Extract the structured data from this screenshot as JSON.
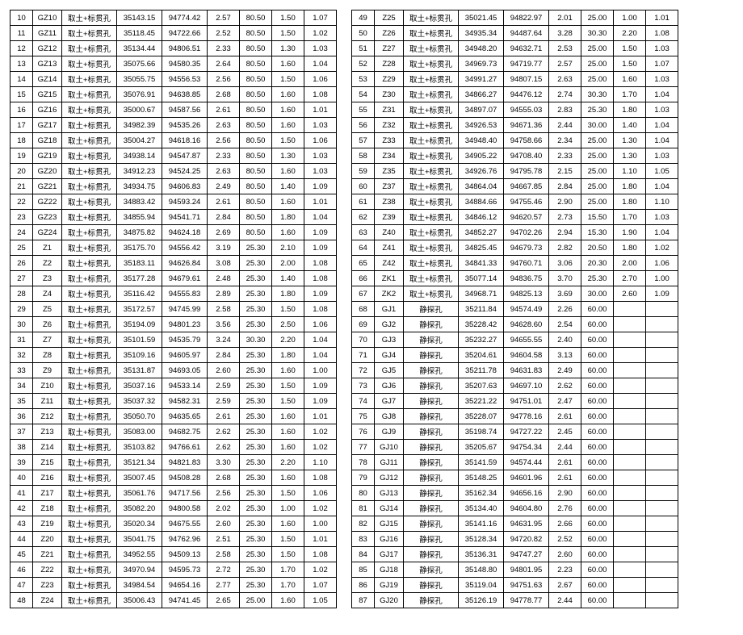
{
  "leftTable": {
    "rows": [
      [
        "10",
        "GZ10",
        "取土+标贯孔",
        "35143.15",
        "94774.42",
        "2.57",
        "80.50",
        "1.50",
        "1.07"
      ],
      [
        "11",
        "GZ11",
        "取土+标贯孔",
        "35118.45",
        "94722.66",
        "2.52",
        "80.50",
        "1.50",
        "1.02"
      ],
      [
        "12",
        "GZ12",
        "取土+标贯孔",
        "35134.44",
        "94806.51",
        "2.33",
        "80.50",
        "1.30",
        "1.03"
      ],
      [
        "13",
        "GZ13",
        "取土+标贯孔",
        "35075.66",
        "94580.35",
        "2.64",
        "80.50",
        "1.60",
        "1.04"
      ],
      [
        "14",
        "GZ14",
        "取土+标贯孔",
        "35055.75",
        "94556.53",
        "2.56",
        "80.50",
        "1.50",
        "1.06"
      ],
      [
        "15",
        "GZ15",
        "取土+标贯孔",
        "35076.91",
        "94638.85",
        "2.68",
        "80.50",
        "1.60",
        "1.08"
      ],
      [
        "16",
        "GZ16",
        "取土+标贯孔",
        "35000.67",
        "94587.56",
        "2.61",
        "80.50",
        "1.60",
        "1.01"
      ],
      [
        "17",
        "GZ17",
        "取土+标贯孔",
        "34982.39",
        "94535.26",
        "2.63",
        "80.50",
        "1.60",
        "1.03"
      ],
      [
        "18",
        "GZ18",
        "取土+标贯孔",
        "35004.27",
        "94618.16",
        "2.56",
        "80.50",
        "1.50",
        "1.06"
      ],
      [
        "19",
        "GZ19",
        "取土+标贯孔",
        "34938.14",
        "94547.87",
        "2.33",
        "80.50",
        "1.30",
        "1.03"
      ],
      [
        "20",
        "GZ20",
        "取土+标贯孔",
        "34912.23",
        "94524.25",
        "2.63",
        "80.50",
        "1.60",
        "1.03"
      ],
      [
        "21",
        "GZ21",
        "取土+标贯孔",
        "34934.75",
        "94606.83",
        "2.49",
        "80.50",
        "1.40",
        "1.09"
      ],
      [
        "22",
        "GZ22",
        "取土+标贯孔",
        "34883.42",
        "94593.24",
        "2.61",
        "80.50",
        "1.60",
        "1.01"
      ],
      [
        "23",
        "GZ23",
        "取土+标贯孔",
        "34855.94",
        "94541.71",
        "2.84",
        "80.50",
        "1.80",
        "1.04"
      ],
      [
        "24",
        "GZ24",
        "取土+标贯孔",
        "34875.82",
        "94624.18",
        "2.69",
        "80.50",
        "1.60",
        "1.09"
      ],
      [
        "25",
        "Z1",
        "取土+标贯孔",
        "35175.70",
        "94556.42",
        "3.19",
        "25.30",
        "2.10",
        "1.09"
      ],
      [
        "26",
        "Z2",
        "取土+标贯孔",
        "35183.11",
        "94626.84",
        "3.08",
        "25.30",
        "2.00",
        "1.08"
      ],
      [
        "27",
        "Z3",
        "取土+标贯孔",
        "35177.28",
        "94679.61",
        "2.48",
        "25.30",
        "1.40",
        "1.08"
      ],
      [
        "28",
        "Z4",
        "取土+标贯孔",
        "35116.42",
        "94555.83",
        "2.89",
        "25.30",
        "1.80",
        "1.09"
      ],
      [
        "29",
        "Z5",
        "取土+标贯孔",
        "35172.57",
        "94745.99",
        "2.58",
        "25.30",
        "1.50",
        "1.08"
      ],
      [
        "30",
        "Z6",
        "取土+标贯孔",
        "35194.09",
        "94801.23",
        "3.56",
        "25.30",
        "2.50",
        "1.06"
      ],
      [
        "31",
        "Z7",
        "取土+标贯孔",
        "35101.59",
        "94535.79",
        "3.24",
        "30.30",
        "2.20",
        "1.04"
      ],
      [
        "32",
        "Z8",
        "取土+标贯孔",
        "35109.16",
        "94605.97",
        "2.84",
        "25.30",
        "1.80",
        "1.04"
      ],
      [
        "33",
        "Z9",
        "取土+标贯孔",
        "35131.87",
        "94693.05",
        "2.60",
        "25.30",
        "1.60",
        "1.00"
      ],
      [
        "34",
        "Z10",
        "取土+标贯孔",
        "35037.16",
        "94533.14",
        "2.59",
        "25.30",
        "1.50",
        "1.09"
      ],
      [
        "35",
        "Z11",
        "取土+标贯孔",
        "35037.32",
        "94582.31",
        "2.59",
        "25.30",
        "1.50",
        "1.09"
      ],
      [
        "36",
        "Z12",
        "取土+标贯孔",
        "35050.70",
        "94635.65",
        "2.61",
        "25.30",
        "1.60",
        "1.01"
      ],
      [
        "37",
        "Z13",
        "取土+标贯孔",
        "35083.00",
        "94682.75",
        "2.62",
        "25.30",
        "1.60",
        "1.02"
      ],
      [
        "38",
        "Z14",
        "取土+标贯孔",
        "35103.82",
        "94766.61",
        "2.62",
        "25.30",
        "1.60",
        "1.02"
      ],
      [
        "39",
        "Z15",
        "取土+标贯孔",
        "35121.34",
        "94821.83",
        "3.30",
        "25.30",
        "2.20",
        "1.10"
      ],
      [
        "40",
        "Z16",
        "取土+标贯孔",
        "35007.45",
        "94508.28",
        "2.68",
        "25.30",
        "1.60",
        "1.08"
      ],
      [
        "41",
        "Z17",
        "取土+标贯孔",
        "35061.76",
        "94717.56",
        "2.56",
        "25.30",
        "1.50",
        "1.06"
      ],
      [
        "42",
        "Z18",
        "取土+标贯孔",
        "35082.20",
        "94800.58",
        "2.02",
        "25.30",
        "1.00",
        "1.02"
      ],
      [
        "43",
        "Z19",
        "取土+标贯孔",
        "35020.34",
        "94675.55",
        "2.60",
        "25.30",
        "1.60",
        "1.00"
      ],
      [
        "44",
        "Z20",
        "取土+标贯孔",
        "35041.75",
        "94762.96",
        "2.51",
        "25.30",
        "1.50",
        "1.01"
      ],
      [
        "45",
        "Z21",
        "取土+标贯孔",
        "34952.55",
        "94509.13",
        "2.58",
        "25.30",
        "1.50",
        "1.08"
      ],
      [
        "46",
        "Z22",
        "取土+标贯孔",
        "34970.94",
        "94595.73",
        "2.72",
        "25.30",
        "1.70",
        "1.02"
      ],
      [
        "47",
        "Z23",
        "取土+标贯孔",
        "34984.54",
        "94654.16",
        "2.77",
        "25.30",
        "1.70",
        "1.07"
      ],
      [
        "48",
        "Z24",
        "取土+标贯孔",
        "35006.43",
        "94741.45",
        "2.65",
        "25.00",
        "1.60",
        "1.05"
      ]
    ]
  },
  "rightTable": {
    "rows": [
      [
        "49",
        "Z25",
        "取土+标贯孔",
        "35021.45",
        "94822.97",
        "2.01",
        "25.00",
        "1.00",
        "1.01"
      ],
      [
        "50",
        "Z26",
        "取土+标贯孔",
        "34935.34",
        "94487.64",
        "3.28",
        "30.30",
        "2.20",
        "1.08"
      ],
      [
        "51",
        "Z27",
        "取土+标贯孔",
        "34948.20",
        "94632.71",
        "2.53",
        "25.00",
        "1.50",
        "1.03"
      ],
      [
        "52",
        "Z28",
        "取土+标贯孔",
        "34969.73",
        "94719.77",
        "2.57",
        "25.00",
        "1.50",
        "1.07"
      ],
      [
        "53",
        "Z29",
        "取土+标贯孔",
        "34991.27",
        "94807.15",
        "2.63",
        "25.00",
        "1.60",
        "1.03"
      ],
      [
        "54",
        "Z30",
        "取土+标贯孔",
        "34866.27",
        "94476.12",
        "2.74",
        "30.30",
        "1.70",
        "1.04"
      ],
      [
        "55",
        "Z31",
        "取土+标贯孔",
        "34897.07",
        "94555.03",
        "2.83",
        "25.30",
        "1.80",
        "1.03"
      ],
      [
        "56",
        "Z32",
        "取土+标贯孔",
        "34926.53",
        "94671.36",
        "2.44",
        "30.00",
        "1.40",
        "1.04"
      ],
      [
        "57",
        "Z33",
        "取土+标贯孔",
        "34948.40",
        "94758.66",
        "2.34",
        "25.00",
        "1.30",
        "1.04"
      ],
      [
        "58",
        "Z34",
        "取土+标贯孔",
        "34905.22",
        "94708.40",
        "2.33",
        "25.00",
        "1.30",
        "1.03"
      ],
      [
        "59",
        "Z35",
        "取土+标贯孔",
        "34926.76",
        "94795.78",
        "2.15",
        "25.00",
        "1.10",
        "1.05"
      ],
      [
        "60",
        "Z37",
        "取土+标贯孔",
        "34864.04",
        "94667.85",
        "2.84",
        "25.00",
        "1.80",
        "1.04"
      ],
      [
        "61",
        "Z38",
        "取土+标贯孔",
        "34884.66",
        "94755.46",
        "2.90",
        "25.00",
        "1.80",
        "1.10"
      ],
      [
        "62",
        "Z39",
        "取土+标贯孔",
        "34846.12",
        "94620.57",
        "2.73",
        "15.50",
        "1.70",
        "1.03"
      ],
      [
        "63",
        "Z40",
        "取土+标贯孔",
        "34852.27",
        "94702.26",
        "2.94",
        "15.30",
        "1.90",
        "1.04"
      ],
      [
        "64",
        "Z41",
        "取土+标贯孔",
        "34825.45",
        "94679.73",
        "2.82",
        "20.50",
        "1.80",
        "1.02"
      ],
      [
        "65",
        "Z42",
        "取土+标贯孔",
        "34841.33",
        "94760.71",
        "3.06",
        "20.30",
        "2.00",
        "1.06"
      ],
      [
        "66",
        "ZK1",
        "取土+标贯孔",
        "35077.14",
        "94836.75",
        "3.70",
        "25.30",
        "2.70",
        "1.00"
      ],
      [
        "67",
        "ZK2",
        "取土+标贯孔",
        "34968.71",
        "94825.13",
        "3.69",
        "30.00",
        "2.60",
        "1.09"
      ],
      [
        "68",
        "GJ1",
        "静探孔",
        "35211.84",
        "94574.49",
        "2.26",
        "60.00",
        "",
        ""
      ],
      [
        "69",
        "GJ2",
        "静探孔",
        "35228.42",
        "94628.60",
        "2.54",
        "60.00",
        "",
        ""
      ],
      [
        "70",
        "GJ3",
        "静探孔",
        "35232.27",
        "94655.55",
        "2.40",
        "60.00",
        "",
        ""
      ],
      [
        "71",
        "GJ4",
        "静探孔",
        "35204.61",
        "94604.58",
        "3.13",
        "60.00",
        "",
        ""
      ],
      [
        "72",
        "GJ5",
        "静探孔",
        "35211.78",
        "94631.83",
        "2.49",
        "60.00",
        "",
        ""
      ],
      [
        "73",
        "GJ6",
        "静探孔",
        "35207.63",
        "94697.10",
        "2.62",
        "60.00",
        "",
        ""
      ],
      [
        "74",
        "GJ7",
        "静探孔",
        "35221.22",
        "94751.01",
        "2.47",
        "60.00",
        "",
        ""
      ],
      [
        "75",
        "GJ8",
        "静探孔",
        "35228.07",
        "94778.16",
        "2.61",
        "60.00",
        "",
        ""
      ],
      [
        "76",
        "GJ9",
        "静探孔",
        "35198.74",
        "94727.22",
        "2.45",
        "60.00",
        "",
        ""
      ],
      [
        "77",
        "GJ10",
        "静探孔",
        "35205.67",
        "94754.34",
        "2.44",
        "60.00",
        "",
        ""
      ],
      [
        "78",
        "GJ11",
        "静探孔",
        "35141.59",
        "94574.44",
        "2.61",
        "60.00",
        "",
        ""
      ],
      [
        "79",
        "GJ12",
        "静探孔",
        "35148.25",
        "94601.96",
        "2.61",
        "60.00",
        "",
        ""
      ],
      [
        "80",
        "GJ13",
        "静探孔",
        "35162.34",
        "94656.16",
        "2.90",
        "60.00",
        "",
        ""
      ],
      [
        "81",
        "GJ14",
        "静探孔",
        "35134.40",
        "94604.80",
        "2.76",
        "60.00",
        "",
        ""
      ],
      [
        "82",
        "GJ15",
        "静探孔",
        "35141.16",
        "94631.95",
        "2.66",
        "60.00",
        "",
        ""
      ],
      [
        "83",
        "GJ16",
        "静探孔",
        "35128.34",
        "94720.82",
        "2.52",
        "60.00",
        "",
        ""
      ],
      [
        "84",
        "GJ17",
        "静探孔",
        "35136.31",
        "94747.27",
        "2.60",
        "60.00",
        "",
        ""
      ],
      [
        "85",
        "GJ18",
        "静探孔",
        "35148.80",
        "94801.95",
        "2.23",
        "60.00",
        "",
        ""
      ],
      [
        "86",
        "GJ19",
        "静探孔",
        "35119.04",
        "94751.63",
        "2.67",
        "60.00",
        "",
        ""
      ],
      [
        "87",
        "GJ20",
        "静探孔",
        "35126.19",
        "94778.77",
        "2.44",
        "60.00",
        "",
        ""
      ]
    ]
  }
}
